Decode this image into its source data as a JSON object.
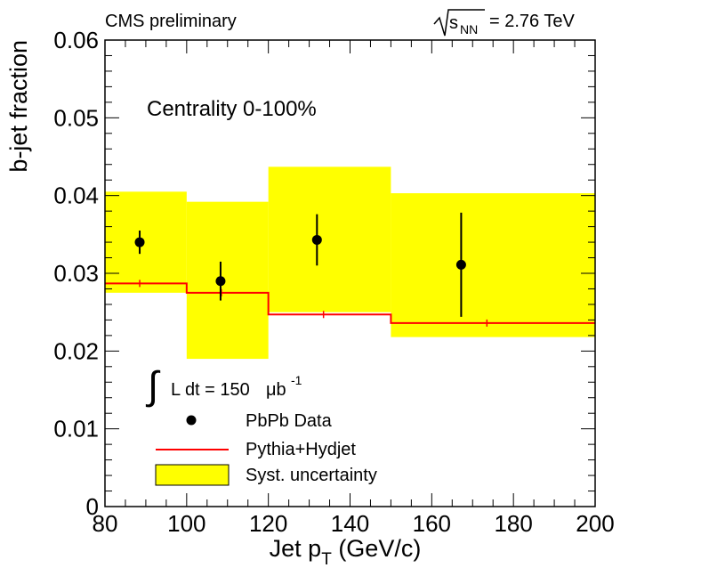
{
  "chart_data": {
    "type": "scatter",
    "header_left": "CMS preliminary",
    "header_right": {
      "sqrt_sub": "NN",
      "value_text": "= 2.76 TeV",
      "sqrt_var": "s"
    },
    "annotation": "Centrality 0-100%",
    "luminosity": {
      "integral": "∫",
      "text": "L dt = 150",
      "unit": "μb",
      "exponent": "-1"
    },
    "xlabel": {
      "main": "Jet p",
      "sub": "T",
      "unit": " (GeV/c)"
    },
    "ylabel": "b-jet fraction",
    "xlim": [
      80,
      200
    ],
    "ylim": [
      0,
      0.06
    ],
    "x_ticks": [
      "80",
      "100",
      "120",
      "140",
      "160",
      "180",
      "200"
    ],
    "y_ticks": [
      "0",
      "0.01",
      "0.02",
      "0.03",
      "0.04",
      "0.05",
      "0.06"
    ],
    "grid": false,
    "legend_position": "bottom-left",
    "legend": [
      {
        "label": "PbPb Data",
        "marker": "point"
      },
      {
        "label": "Pythia+Hydjet",
        "marker": "line"
      },
      {
        "label": "Syst. uncertainty",
        "marker": "box"
      }
    ],
    "colors": {
      "data": "#000000",
      "mc": "#ff0000",
      "syst_fill": "#ffff00"
    },
    "bins": [
      [
        80,
        100
      ],
      [
        100,
        120
      ],
      [
        120,
        150
      ],
      [
        150,
        200
      ]
    ],
    "data_points": [
      {
        "x": 88.5,
        "y": 0.034,
        "err_low": 0.0015,
        "err_high": 0.0015
      },
      {
        "x": 108.3,
        "y": 0.029,
        "err_low": 0.0025,
        "err_high": 0.0025
      },
      {
        "x": 131.9,
        "y": 0.0343,
        "err_low": 0.0033,
        "err_high": 0.0033
      },
      {
        "x": 167.2,
        "y": 0.0311,
        "err_low": 0.0067,
        "err_high": 0.0067
      }
    ],
    "syst_bands": [
      {
        "x0": 80,
        "x1": 100,
        "low": 0.0275,
        "high": 0.0405
      },
      {
        "x0": 100,
        "x1": 120,
        "low": 0.019,
        "high": 0.0392
      },
      {
        "x0": 120,
        "x1": 150,
        "low": 0.025,
        "high": 0.0437
      },
      {
        "x0": 150,
        "x1": 200,
        "low": 0.0218,
        "high": 0.0403
      }
    ],
    "mc_histogram": [
      {
        "x0": 80,
        "x1": 100,
        "y": 0.0287
      },
      {
        "x0": 100,
        "x1": 120,
        "y": 0.0275
      },
      {
        "x0": 120,
        "x1": 150,
        "y": 0.0247
      },
      {
        "x0": 150,
        "x1": 200,
        "y": 0.0236
      }
    ]
  }
}
